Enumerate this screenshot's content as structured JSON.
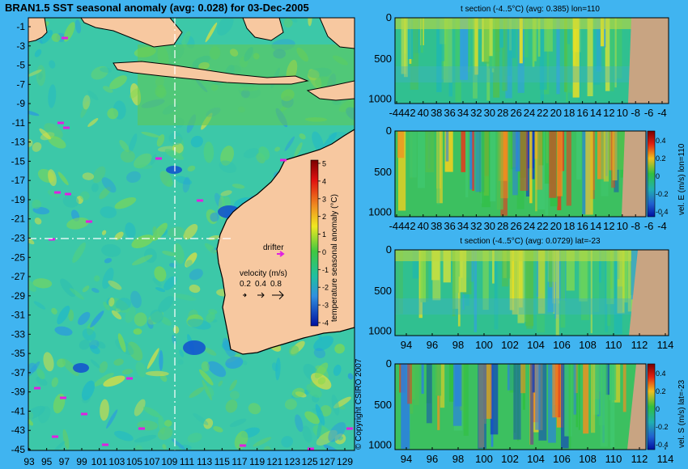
{
  "colors": {
    "background": "#40b4f0",
    "land": "#f7c8a0",
    "section_land": "#c8a482",
    "ocean_base": "#3cc8a8",
    "warm": "#f0e020",
    "hot": "#d02010",
    "cold": "#1060d0",
    "drifter": "#e020e0"
  },
  "map": {
    "title": "BRAN1.5 SST seasonal anomaly (avg: 0.028) for 03-Dec-2005",
    "x_ticks": [
      "93",
      "95",
      "97",
      "99",
      "101",
      "103",
      "105",
      "107",
      "109",
      "111",
      "113",
      "115",
      "117",
      "119",
      "121",
      "123",
      "125",
      "127",
      "129"
    ],
    "y_ticks": [
      "-1",
      "-3",
      "-5",
      "-7",
      "-9",
      "-11",
      "-13",
      "-15",
      "-17",
      "-19",
      "-21",
      "-23",
      "-25",
      "-27",
      "-29",
      "-31",
      "-33",
      "-35",
      "-37",
      "-39",
      "-41",
      "-43",
      "-45"
    ],
    "drifter_label": "drifter",
    "velocity_label": "velocity (m/s)",
    "velocity_scale": [
      "0.2",
      "0.4",
      "0.8"
    ],
    "colorbar_label": "temperature seasonal anomaly (°C)",
    "colorbar_ticks": [
      "5",
      "4",
      "3",
      "2",
      "1",
      "0",
      "-1",
      "-2",
      "-3",
      "-4"
    ],
    "copyright": "© Copyright CSIRO 2007",
    "crosshair": {
      "lon": 110,
      "lat": -23
    }
  },
  "panels": [
    {
      "title": "t section (-4..5°C) (avg: 0.385) lon=110",
      "x_ticks": [
        "-44",
        "42",
        "40",
        "38",
        "36",
        "34",
        "32",
        "30",
        "28",
        "26",
        "24",
        "22",
        "20",
        "18",
        "16",
        "14",
        "12",
        "10",
        "-8",
        "-6",
        "-4"
      ],
      "y_ticks": [
        "0",
        "500",
        "1000"
      ],
      "colorbar": null
    },
    {
      "title": "",
      "x_ticks": [
        "-44",
        "42",
        "40",
        "38",
        "36",
        "34",
        "32",
        "30",
        "28",
        "26",
        "24",
        "22",
        "20",
        "18",
        "16",
        "14",
        "12",
        "10",
        "-8",
        "-6",
        "-4"
      ],
      "y_ticks": [
        "0",
        "500",
        "1000"
      ],
      "colorbar": {
        "label": "vel. E (m/s) lon=110",
        "ticks": [
          "0.4",
          "0.2",
          "0",
          "-0.2",
          "-0.4"
        ]
      }
    },
    {
      "title": "t section (-4..5°C) (avg: 0.0729) lat=-23",
      "x_ticks": [
        "94",
        "96",
        "98",
        "100",
        "102",
        "104",
        "106",
        "108",
        "110",
        "112",
        "114"
      ],
      "y_ticks": [
        "0",
        "500",
        "1000"
      ],
      "colorbar": null
    },
    {
      "title": "",
      "x_ticks": [
        "94",
        "96",
        "98",
        "100",
        "102",
        "104",
        "106",
        "108",
        "110",
        "112",
        "114"
      ],
      "y_ticks": [
        "0",
        "500",
        "1000"
      ],
      "colorbar": {
        "label": "vel. S (m/s) lat=-23",
        "ticks": [
          "0.4",
          "0.2",
          "0",
          "-0.2",
          "-0.4"
        ]
      }
    }
  ],
  "chart_data": [
    {
      "type": "heatmap",
      "title": "BRAN1.5 SST seasonal anomaly (avg: 0.028) for 03-Dec-2005",
      "xlim": [
        93,
        130
      ],
      "ylim": [
        -45,
        0
      ],
      "colorbar_range": [
        -4,
        5
      ],
      "colorbar_label": "temperature seasonal anomaly (°C)",
      "crosshair": {
        "lon": 110,
        "lat": -23
      }
    },
    {
      "type": "heatmap",
      "title": "t section (-4..5°C) (avg: 0.385) lon=110",
      "xlim": [
        -45,
        -3
      ],
      "ylim": [
        1050,
        0
      ]
    },
    {
      "type": "heatmap",
      "xlim": [
        -45,
        -3
      ],
      "ylim": [
        1050,
        0
      ],
      "colorbar_label": "vel. E (m/s) lon=110",
      "colorbar_range": [
        -0.4,
        0.4
      ]
    },
    {
      "type": "heatmap",
      "title": "t section (-4..5°C) (avg: 0.0729) lat=-23",
      "xlim": [
        93,
        115
      ],
      "ylim": [
        1050,
        0
      ]
    },
    {
      "type": "heatmap",
      "xlim": [
        93,
        115
      ],
      "ylim": [
        1050,
        0
      ],
      "colorbar_label": "vel. S (m/s) lat=-23",
      "colorbar_range": [
        -0.4,
        0.4
      ]
    }
  ]
}
